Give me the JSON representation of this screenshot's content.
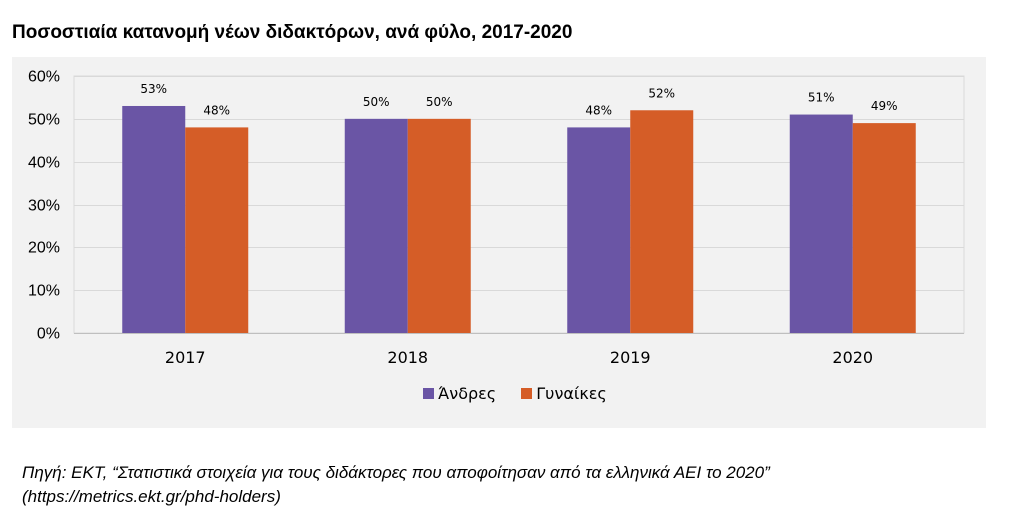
{
  "title": "Ποσοστιαία κατανομή νέων διδακτόρων, ανά φύλο, 2017-2020",
  "source": {
    "line1": "Πηγή: ΕΚΤ, “Στατιστικά στοιχεία για τους διδάκτορες που αποφοίτησαν από τα ελληνικά ΑΕΙ το 2020”",
    "line2": "(https://metrics.ekt.gr/phd-holders)"
  },
  "chart_data": {
    "type": "bar",
    "title": "Ποσοστιαία κατανομή νέων διδακτόρων, ανά φύλο, 2017-2020",
    "categories": [
      "2017",
      "2018",
      "2019",
      "2020"
    ],
    "series": [
      {
        "name": "Άνδρες",
        "color": "#6a55a5",
        "values": [
          53,
          50,
          48,
          51
        ],
        "labels": [
          "53%",
          "50%",
          "48%",
          "51%"
        ]
      },
      {
        "name": "Γυναίκες",
        "color": "#d55d27",
        "values": [
          48,
          50,
          52,
          49
        ],
        "labels": [
          "48%",
          "50%",
          "52%",
          "49%"
        ]
      }
    ],
    "ylim": [
      0,
      60
    ],
    "yticks": [
      "0%",
      "10%",
      "20%",
      "30%",
      "40%",
      "50%",
      "60%"
    ],
    "grid": true,
    "legend_position": "bottom"
  }
}
